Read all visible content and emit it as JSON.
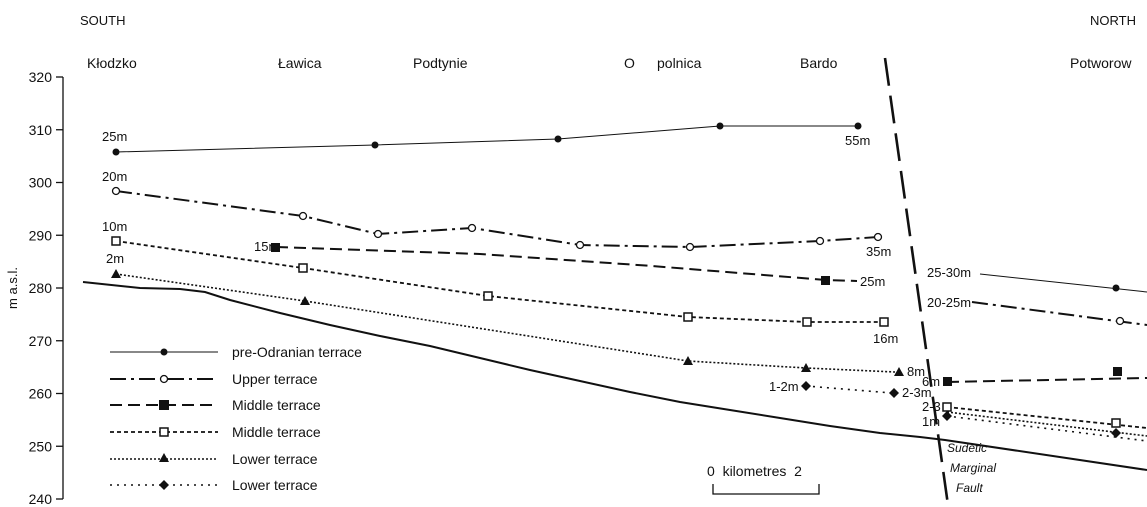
{
  "directions": {
    "left": "SOUTH",
    "right": "NORTH"
  },
  "places": [
    "Kłodzko",
    "Ławica",
    "Podtynie",
    "O",
    "polnica",
    "Bardo",
    "Potworow"
  ],
  "y_axis": {
    "label": "m a.s.l.",
    "ticks": [
      "320",
      "310",
      "300",
      "290",
      "280",
      "270",
      "260",
      "250",
      "240"
    ]
  },
  "legend": [
    {
      "label": "pre-Odranian terrace",
      "line": "solid",
      "marker": "filled-circle"
    },
    {
      "label": "Upper terrace",
      "line": "dash-dot",
      "marker": "open-circle"
    },
    {
      "label": "Middle terrace",
      "line": "long-dash",
      "marker": "filled-square"
    },
    {
      "label": "Middle terrace",
      "line": "short-dash",
      "marker": "open-square"
    },
    {
      "label": "Lower terrace",
      "line": "dotted",
      "marker": "filled-triangle"
    },
    {
      "label": "Lower terrace",
      "line": "sparse-dotted",
      "marker": "filled-diamond"
    }
  ],
  "height_labels": {
    "pre_left": "25m",
    "pre_right": "55m",
    "upper_left": "20m",
    "upper_right": "35m",
    "mid1_left": "15m",
    "mid1_right": "25m",
    "mid2_left": "10m",
    "mid2_right": "16m",
    "low1_left": "2m",
    "low1_right": "8m",
    "low2_left": "1-2m",
    "low2_right": "2-3m",
    "north_upper": "25-30m",
    "north_upper2": "20-25m",
    "north_mid": "6m",
    "north_low": "2-3",
    "north_low2": "1m"
  },
  "scale_bar": {
    "label": "0  kilometres  2"
  },
  "fault": {
    "label_lines": [
      "Sudetic",
      "Marginal",
      "Fault"
    ]
  },
  "colors": {
    "ink": "#111111",
    "background": "#ffffff"
  }
}
